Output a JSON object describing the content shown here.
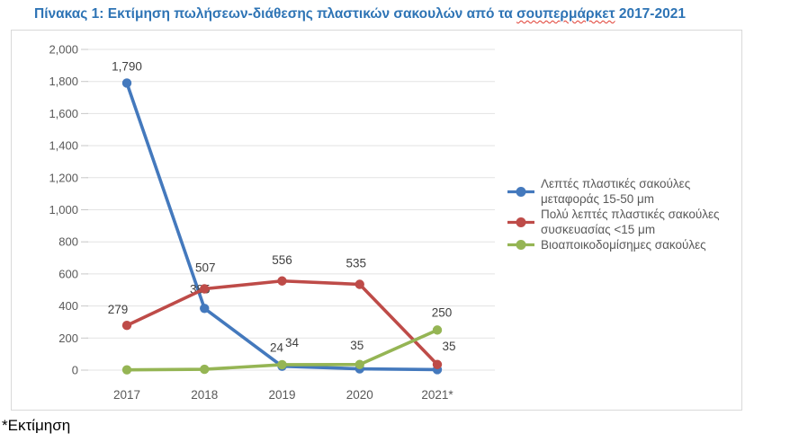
{
  "page": {
    "title": {
      "prefix": "Πίνακας 1: Εκτίμηση πωλήσεων-διάθεσης πλαστικών σακουλών από τα ",
      "spellchecked_word": "σουπερμάρκετ",
      "suffix": " 2017-2021",
      "color": "#2E74B5"
    },
    "footnote": "*Εκτίμηση"
  },
  "colors": {
    "title_blue": "#2E74B5",
    "axis_text": "#595959",
    "data_label_text": "#404040",
    "gridline": "#e3e3e3",
    "tick": "#c8c8c8",
    "chart_border": "#d9d9d9",
    "series_blue": "#4479BD",
    "series_red": "#BE4B48",
    "series_green": "#95B554"
  },
  "chart_data": {
    "type": "line",
    "title": "",
    "x": [
      "2017",
      "2018",
      "2019",
      "2020",
      "2021*"
    ],
    "ylim": [
      0,
      2000
    ],
    "ytick_step": 200,
    "ytick_labels": [
      "0",
      "200",
      "400",
      "600",
      "800",
      "1,000",
      "1,200",
      "1,400",
      "1,600",
      "1,800",
      "2,000"
    ],
    "grid": true,
    "legend_position": "right",
    "series": [
      {
        "name": "Λεπτές πλαστικές σακούλες μεταφοράς 15-50 μm",
        "legend_lines": [
          "Λεπτές πλαστικές σακούλες",
          "μεταφοράς 15-50 μm"
        ],
        "color": "#4479BD",
        "values": [
          1790,
          385,
          24,
          8,
          3
        ],
        "labels": [
          {
            "text": "1,790",
            "dx": 0,
            "dy": -14
          },
          {
            "text": "385",
            "dx": -5,
            "dy": -17
          },
          {
            "text": "24",
            "dx": -6,
            "dy": -16
          },
          null,
          null
        ]
      },
      {
        "name": "Πολύ λεπτές πλαστικές σακούλες συσκευασίας <15 μm",
        "legend_lines": [
          "Πολύ λεπτές πλαστικές σακούλες",
          "συσκευασίας <15 μm"
        ],
        "color": "#BE4B48",
        "values": [
          279,
          507,
          556,
          535,
          35
        ],
        "labels": [
          {
            "text": "279",
            "dx": -10,
            "dy": -13
          },
          {
            "text": "507",
            "dx": 1,
            "dy": -19
          },
          {
            "text": "556",
            "dx": 0,
            "dy": -19
          },
          {
            "text": "535",
            "dx": -4,
            "dy": -19
          },
          {
            "text": "35",
            "dx": 13,
            "dy": -16
          }
        ]
      },
      {
        "name": "Βιοαποικοδομίσημες σακούλες",
        "legend_lines": [
          "Βιοαποικοδομίσημες σακούλες"
        ],
        "color": "#95B554",
        "values": [
          2,
          5,
          34,
          35,
          250
        ],
        "labels": [
          null,
          null,
          {
            "text": "34",
            "dx": 11,
            "dy": -20
          },
          {
            "text": "35",
            "dx": -3,
            "dy": -17
          },
          {
            "text": "250",
            "dx": 5,
            "dy": -15
          }
        ]
      }
    ]
  }
}
